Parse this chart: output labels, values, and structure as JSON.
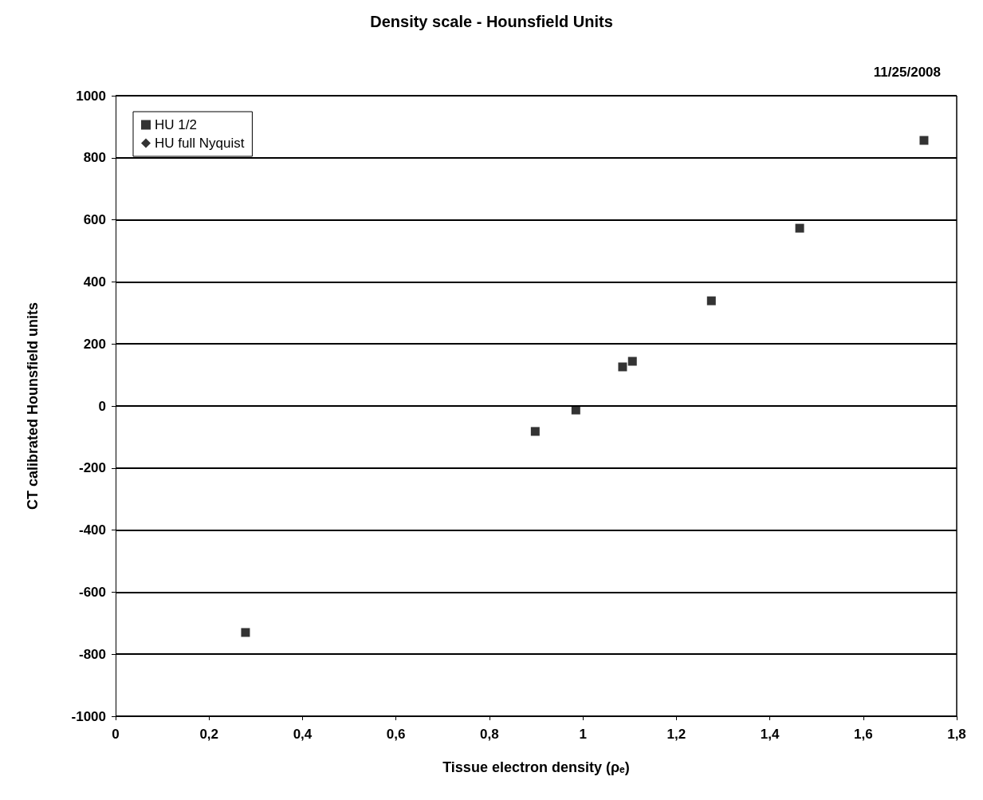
{
  "chart_data": {
    "type": "scatter",
    "title": "Density scale - Hounsfield Units",
    "xlabel": "Tissue electron density (ρₑ)",
    "ylabel": "CT calibrated Hounsfield units",
    "annotations": [
      "11/25/2008"
    ],
    "x": [
      0.278,
      0.898,
      0.985,
      1.085,
      1.106,
      1.275,
      1.464,
      1.73
    ],
    "series": [
      {
        "name": "HU 1/2",
        "color": "#000000",
        "marker": "square",
        "values": [
          -730,
          -82,
          -13,
          126,
          144,
          339,
          573,
          856
        ]
      },
      {
        "name": "HU full Nyquist",
        "color": "#000000",
        "marker": "diamond",
        "values": [
          null,
          null,
          null,
          null,
          null,
          null,
          null,
          null
        ]
      }
    ],
    "xlim": [
      0,
      1.8
    ],
    "xticks": [
      0,
      {
        "value": 0.2,
        "label": "0,2"
      },
      {
        "value": 0.4,
        "label": "0,4"
      },
      {
        "value": 0.6,
        "label": "0,6"
      },
      {
        "value": 0.8,
        "label": "0,8"
      },
      1,
      {
        "value": 1.2,
        "label": "1,2"
      },
      {
        "value": 1.4,
        "label": "1,4"
      },
      {
        "value": 1.6,
        "label": "1,6"
      },
      {
        "value": 1.8,
        "label": "1,8"
      }
    ],
    "ylim": [
      -1000,
      1000
    ],
    "yticks": [
      -1000,
      -800,
      -600,
      -400,
      -200,
      0,
      200,
      400,
      600,
      800,
      1000
    ],
    "grid": "y",
    "legend": "top left"
  }
}
